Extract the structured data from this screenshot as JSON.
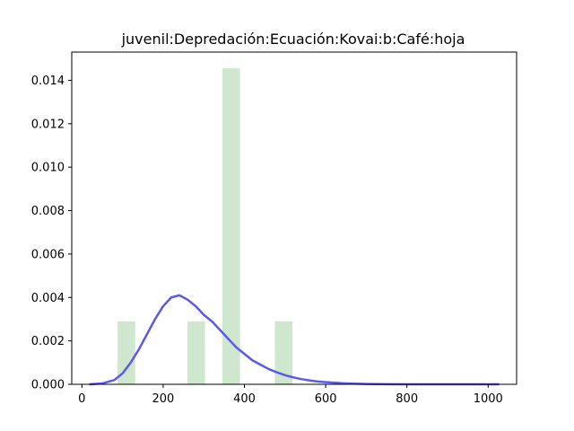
{
  "chart_data": {
    "type": "bar",
    "title": "juvenil:Depredación:Ecuación:Kovai:b:Café:hoja",
    "xlabel": "",
    "ylabel": "",
    "xlim": [
      -25,
      1070
    ],
    "ylim": [
      0,
      0.0153
    ],
    "grid": false,
    "legend": "none",
    "x_ticks": [
      0,
      200,
      400,
      600,
      800,
      1000
    ],
    "x_tick_labels": [
      "0",
      "200",
      "400",
      "600",
      "800",
      "1000"
    ],
    "y_ticks": [
      0.0,
      0.002,
      0.004,
      0.006,
      0.008,
      0.01,
      0.012,
      0.014
    ],
    "y_tick_labels": [
      "0.000",
      "0.002",
      "0.004",
      "0.006",
      "0.008",
      "0.010",
      "0.012",
      "0.014"
    ],
    "histogram": {
      "color": "#cfe6cf",
      "bars": [
        {
          "x0": 88,
          "x1": 131,
          "height": 0.0029
        },
        {
          "x0": 131,
          "x1": 174,
          "height": 0.0
        },
        {
          "x0": 174,
          "x1": 217,
          "height": 0.0
        },
        {
          "x0": 217,
          "x1": 260,
          "height": 0.0
        },
        {
          "x0": 260,
          "x1": 303,
          "height": 0.0029
        },
        {
          "x0": 303,
          "x1": 346,
          "height": 0.0
        },
        {
          "x0": 346,
          "x1": 389,
          "height": 0.01455
        },
        {
          "x0": 389,
          "x1": 432,
          "height": 0.0
        },
        {
          "x0": 432,
          "x1": 475,
          "height": 0.0
        },
        {
          "x0": 475,
          "x1": 518,
          "height": 0.0029
        }
      ]
    },
    "density_line": {
      "color": "#5a5aee",
      "x": [
        20,
        50,
        80,
        100,
        120,
        140,
        160,
        180,
        200,
        220,
        240,
        260,
        280,
        300,
        320,
        340,
        360,
        380,
        400,
        420,
        440,
        460,
        480,
        500,
        520,
        540,
        560,
        580,
        600,
        650,
        700,
        750,
        800,
        900,
        1000,
        1025
      ],
      "y": [
        0.0,
        4e-05,
        0.0002,
        0.0005,
        0.001,
        0.0016,
        0.0023,
        0.003,
        0.0036,
        0.004,
        0.0041,
        0.0039,
        0.0036,
        0.0032,
        0.0029,
        0.0025,
        0.0021,
        0.0017,
        0.0014,
        0.0011,
        0.0009,
        0.0007,
        0.00055,
        0.00042,
        0.00032,
        0.00024,
        0.00018,
        0.00013,
        0.0001,
        4e-05,
        1.5e-05,
        5e-06,
        2e-06,
        5e-07,
        1e-07,
        0.0
      ]
    }
  }
}
